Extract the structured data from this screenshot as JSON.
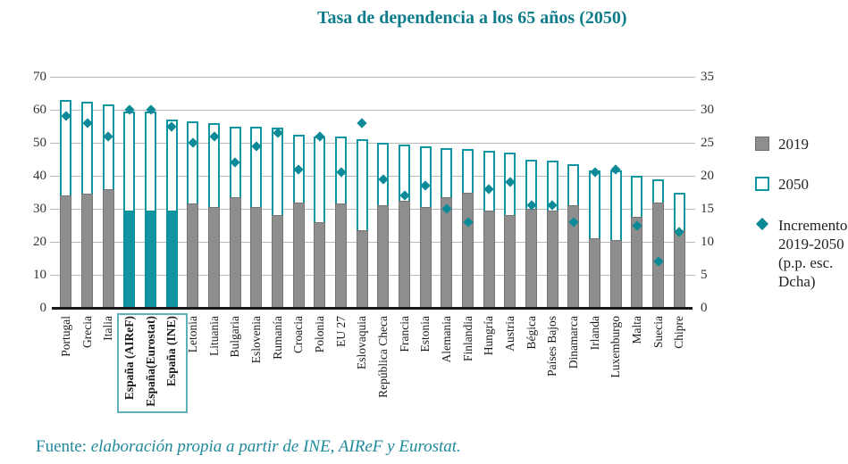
{
  "title": "Tasa de dependencia a los 65 años (2050)",
  "legend": {
    "item_2019": "2019",
    "item_2050": "2050",
    "item_increment_lines": [
      "Incremento",
      "2019-2050",
      "(p.p. esc. Dcha)"
    ]
  },
  "footer": {
    "prefix": "Fuente: ",
    "text": "elaboración propia a partir de INE, AIReF y Eurostat."
  },
  "colors": {
    "teal": "#1095a3",
    "diamond_teal": "#0d8a98",
    "title_teal": "#0f7c8c",
    "footer_teal": "#1f8a9c",
    "gray_fill": "#8e8e8e",
    "gray_border": "#757575",
    "gridline": "#b8b8b8",
    "axis_text": "#333333",
    "highlight_box_border": "#5db1bd"
  },
  "chart_data": {
    "type": "bar",
    "title": "Tasa de dependencia a los 65 años (2050)",
    "categories": [
      "Portugal",
      "Grecia",
      "Italia",
      "España (AIReF)",
      "España(Eurostat)",
      "España (INE)",
      "Letonia",
      "Lituania",
      "Bulgaria",
      "Eslovenia",
      "Rumanía",
      "Croacia",
      "Polonia",
      "EU 27",
      "Eslovaquia",
      "República Checa",
      "Francia",
      "Estonia",
      "Alemania",
      "Finlandia",
      "Hungría",
      "Austria",
      "Bégica",
      "Países Bajos",
      "Dinamarca",
      "Irlanda",
      "Luxemburgo",
      "Malta",
      "Suecia",
      "Chipre"
    ],
    "series": [
      {
        "name": "2019",
        "type": "bar",
        "axis": "left",
        "values": [
          34,
          34.5,
          36,
          29.5,
          29.5,
          29.5,
          31.5,
          30.5,
          33.5,
          30.5,
          28,
          32,
          26,
          31.5,
          23.5,
          31,
          32.5,
          30.5,
          33.5,
          35,
          29.5,
          28,
          30,
          29.5,
          31,
          21,
          20.5,
          27.5,
          32,
          23.5
        ]
      },
      {
        "name": "2050",
        "type": "bar-outline",
        "axis": "left",
        "values": [
          63,
          62.5,
          61.5,
          59.5,
          59.5,
          57,
          56.5,
          56,
          55,
          55,
          54.5,
          52.5,
          52,
          52,
          51,
          50,
          49.5,
          49,
          48.5,
          48,
          47.5,
          47,
          45,
          44.5,
          43.5,
          41.5,
          41.5,
          40,
          39,
          35
        ]
      },
      {
        "name": "Incremento 2019-2050 (p.p. esc. Dcha)",
        "type": "point-diamond",
        "axis": "right",
        "values": [
          29,
          28,
          26,
          30,
          30,
          27.5,
          25,
          26,
          22,
          24.5,
          26.5,
          21,
          26,
          20.5,
          28,
          19.5,
          17,
          18.5,
          15,
          13,
          18,
          19,
          15.5,
          15.5,
          13,
          20.5,
          21,
          12.5,
          7,
          11.5
        ]
      }
    ],
    "highlight_indices": [
      3,
      4,
      5
    ],
    "axis_left": {
      "min": 0,
      "max": 70,
      "ticks": [
        0,
        10,
        20,
        30,
        40,
        50,
        60,
        70
      ]
    },
    "axis_right": {
      "min": 0,
      "max": 35,
      "ticks": [
        0,
        5,
        10,
        15,
        20,
        25,
        30,
        35
      ]
    },
    "grid": true,
    "legend_position": "right"
  }
}
